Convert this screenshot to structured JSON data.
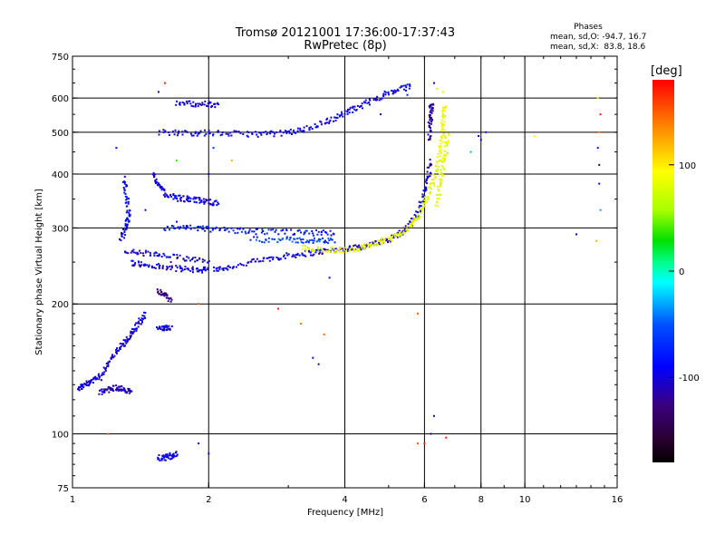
{
  "chart_data": {
    "type": "scatter",
    "title": "Tromsø 20121001 17:36:00-17:37:43",
    "subtitle": "RwPretec (8p)",
    "xlabel": "Frequency [MHz]",
    "ylabel": "Stationary phase Virtual Height [km]",
    "xscale": "log",
    "yscale": "log",
    "xlim": [
      1,
      16
    ],
    "ylim": [
      75,
      750
    ],
    "grid": true,
    "x_ticks": [
      {
        "value": 1,
        "label": "1"
      },
      {
        "value": 2,
        "label": "2"
      },
      {
        "value": 4,
        "label": "4"
      },
      {
        "value": 6,
        "label": "6"
      },
      {
        "value": 8,
        "label": "8"
      },
      {
        "value": 10,
        "label": "10"
      },
      {
        "value": 16,
        "label": "16"
      }
    ],
    "y_ticks": [
      {
        "value": 75,
        "label": "75"
      },
      {
        "value": 100,
        "label": "100"
      },
      {
        "value": 200,
        "label": "200"
      },
      {
        "value": 300,
        "label": "300"
      },
      {
        "value": 400,
        "label": "400"
      },
      {
        "value": 500,
        "label": "500"
      },
      {
        "value": 600,
        "label": "600"
      },
      {
        "value": 750,
        "label": "750"
      }
    ],
    "stats": {
      "heading": "Phases",
      "line_o": "mean, sd,O: -94.7, 16.7",
      "line_x": "mean, sd,X:  83.8, 18.6"
    },
    "colorbar": {
      "label": "[deg]",
      "range": [
        -180,
        180
      ],
      "ticks": [
        {
          "value": 100,
          "label": "100"
        },
        {
          "value": 0,
          "label": "0"
        },
        {
          "value": -100,
          "label": "-100"
        }
      ]
    },
    "traces": [
      {
        "phase": -100,
        "points": [
          [
            2.05,
            240
          ],
          [
            2.2,
            243
          ],
          [
            2.5,
            250
          ],
          [
            2.8,
            256
          ],
          [
            3.1,
            260
          ],
          [
            3.4,
            263
          ],
          [
            3.7,
            266
          ],
          [
            4.0,
            268
          ],
          [
            4.3,
            271
          ],
          [
            4.6,
            275
          ],
          [
            4.9,
            280
          ],
          [
            5.2,
            288
          ],
          [
            5.5,
            300
          ],
          [
            5.75,
            320
          ],
          [
            5.95,
            350
          ],
          [
            6.1,
            390
          ],
          [
            6.2,
            430
          ]
        ]
      },
      {
        "phase": -100,
        "points": [
          [
            1.35,
            250
          ],
          [
            1.45,
            246
          ],
          [
            1.6,
            243
          ],
          [
            1.75,
            241
          ],
          [
            1.9,
            240
          ],
          [
            2.0,
            240
          ]
        ]
      },
      {
        "phase": -100,
        "points": [
          [
            1.3,
            265
          ],
          [
            1.45,
            262
          ],
          [
            1.6,
            258
          ],
          [
            1.8,
            255
          ],
          [
            2.0,
            253
          ]
        ]
      },
      {
        "phase": -95,
        "points": [
          [
            1.55,
            500
          ],
          [
            1.8,
            498
          ],
          [
            2.0,
            498
          ],
          [
            2.3,
            496
          ],
          [
            2.6,
            495
          ],
          [
            2.9,
            497
          ],
          [
            3.2,
            505
          ],
          [
            3.5,
            520
          ],
          [
            3.8,
            540
          ],
          [
            4.1,
            560
          ],
          [
            4.4,
            580
          ],
          [
            4.8,
            605
          ],
          [
            5.2,
            625
          ],
          [
            5.6,
            640
          ]
        ]
      },
      {
        "phase": -100,
        "points": [
          [
            1.7,
            585
          ],
          [
            1.85,
            582
          ],
          [
            2.0,
            580
          ],
          [
            2.1,
            578
          ]
        ]
      },
      {
        "phase": -100,
        "points": [
          [
            1.5,
            400
          ],
          [
            1.55,
            380
          ],
          [
            1.6,
            360
          ],
          [
            1.7,
            352
          ],
          [
            1.8,
            350
          ],
          [
            1.9,
            348
          ],
          [
            2.0,
            345
          ],
          [
            2.1,
            342
          ]
        ]
      },
      {
        "phase": -90,
        "points": [
          [
            1.3,
            390
          ],
          [
            1.32,
            350
          ],
          [
            1.33,
            320
          ],
          [
            1.31,
            300
          ],
          [
            1.28,
            280
          ]
        ]
      },
      {
        "phase": -80,
        "points": [
          [
            1.6,
            300
          ],
          [
            1.8,
            300
          ],
          [
            2.0,
            298
          ],
          [
            2.3,
            296
          ],
          [
            2.6,
            294
          ],
          [
            3.0,
            293
          ],
          [
            3.4,
            292
          ],
          [
            3.8,
            293
          ]
        ]
      },
      {
        "phase": -60,
        "points": [
          [
            2.5,
            282
          ],
          [
            2.9,
            282
          ],
          [
            3.2,
            281
          ],
          [
            3.5,
            280
          ],
          [
            3.8,
            280
          ]
        ]
      },
      {
        "phase": 85,
        "points": [
          [
            3.2,
            270
          ],
          [
            3.6,
            267
          ],
          [
            3.9,
            266
          ],
          [
            4.2,
            268
          ],
          [
            4.5,
            272
          ],
          [
            4.8,
            278
          ],
          [
            5.1,
            285
          ],
          [
            5.4,
            295
          ],
          [
            5.7,
            310
          ],
          [
            5.9,
            330
          ],
          [
            6.1,
            355
          ],
          [
            6.3,
            390
          ],
          [
            6.45,
            430
          ],
          [
            6.55,
            480
          ],
          [
            6.6,
            540
          ],
          [
            6.65,
            580
          ]
        ]
      },
      {
        "phase": 85,
        "points": [
          [
            6.4,
            340
          ],
          [
            6.5,
            380
          ],
          [
            6.6,
            420
          ],
          [
            6.7,
            460
          ],
          [
            6.75,
            500
          ]
        ]
      },
      {
        "phase": -120,
        "points": [
          [
            6.15,
            480
          ],
          [
            6.18,
            520
          ],
          [
            6.2,
            560
          ],
          [
            6.22,
            580
          ]
        ]
      },
      {
        "phase": -100,
        "points": [
          [
            1.03,
            128
          ],
          [
            1.06,
            130
          ],
          [
            1.1,
            132
          ],
          [
            1.15,
            135
          ],
          [
            1.2,
            145
          ],
          [
            1.25,
            155
          ],
          [
            1.3,
            162
          ],
          [
            1.35,
            170
          ],
          [
            1.4,
            180
          ],
          [
            1.45,
            190
          ]
        ]
      },
      {
        "phase": -110,
        "points": [
          [
            1.15,
            125
          ],
          [
            1.2,
            127
          ],
          [
            1.25,
            128
          ],
          [
            1.3,
            127
          ],
          [
            1.35,
            125
          ]
        ]
      },
      {
        "phase": -100,
        "points": [
          [
            1.55,
            175
          ],
          [
            1.6,
            176
          ],
          [
            1.65,
            175
          ]
        ]
      },
      {
        "phase": -100,
        "points": [
          [
            1.55,
            88
          ],
          [
            1.6,
            88
          ],
          [
            1.65,
            89
          ],
          [
            1.7,
            90
          ]
        ]
      },
      {
        "phase": -130,
        "points": [
          [
            1.55,
            215
          ],
          [
            1.6,
            210
          ],
          [
            1.65,
            205
          ]
        ]
      }
    ],
    "scatter_points": [
      [
        1.6,
        650,
        170
      ],
      [
        1.55,
        620,
        -100
      ],
      [
        1.25,
        460,
        -100
      ],
      [
        1.7,
        430,
        40
      ],
      [
        2.0,
        400,
        -100
      ],
      [
        2.25,
        430,
        120
      ],
      [
        1.9,
        200,
        150
      ],
      [
        2.85,
        195,
        170
      ],
      [
        3.2,
        180,
        140
      ],
      [
        3.6,
        170,
        150
      ],
      [
        3.4,
        150,
        -100
      ],
      [
        3.5,
        145,
        -110
      ],
      [
        1.2,
        100,
        150
      ],
      [
        2.0,
        90,
        -100
      ],
      [
        1.9,
        95,
        -100
      ],
      [
        5.8,
        190,
        150
      ],
      [
        5.8,
        95,
        150
      ],
      [
        6.0,
        95,
        170
      ],
      [
        6.3,
        110,
        -110
      ],
      [
        6.2,
        100,
        -100
      ],
      [
        6.7,
        98,
        170
      ],
      [
        7.9,
        490,
        -90
      ],
      [
        8.0,
        480,
        -100
      ],
      [
        7.6,
        450,
        -30
      ],
      [
        8.2,
        500,
        -80
      ],
      [
        10.5,
        490,
        90
      ],
      [
        13.0,
        290,
        -100
      ],
      [
        14.5,
        600,
        100
      ],
      [
        14.6,
        500,
        140
      ],
      [
        14.7,
        550,
        170
      ],
      [
        14.5,
        460,
        -100
      ],
      [
        14.6,
        380,
        -110
      ],
      [
        14.7,
        330,
        -30
      ],
      [
        14.4,
        280,
        120
      ],
      [
        14.6,
        420,
        -150
      ],
      [
        6.4,
        630,
        100
      ],
      [
        6.6,
        620,
        80
      ],
      [
        6.3,
        650,
        -100
      ],
      [
        4.8,
        550,
        -100
      ],
      [
        5.5,
        610,
        -80
      ],
      [
        3.7,
        230,
        -100
      ],
      [
        2.05,
        460,
        -60
      ],
      [
        1.65,
        250,
        -110
      ],
      [
        1.7,
        310,
        -100
      ],
      [
        1.45,
        330,
        -120
      ]
    ]
  }
}
